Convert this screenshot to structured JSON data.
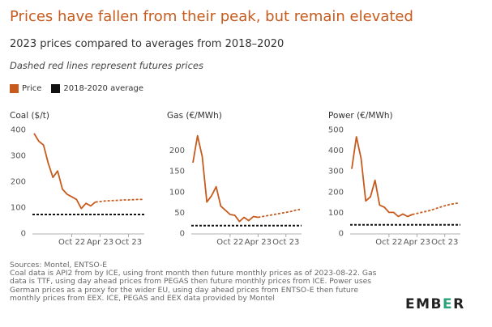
{
  "title": "Prices have fallen from their peak, but remain elevated",
  "subtitle": "2023 prices compared to averages from 2018–2020",
  "note": "Dashed red lines represent futures prices",
  "legend": {
    "price_label": "Price",
    "average_label": "2018-2020 average",
    "price_color": "#c75b1d",
    "average_color": "#111111"
  },
  "colors": {
    "line": "#c75b1d",
    "avg": "#111111",
    "axis": "#999999",
    "tick_text": "#555555"
  },
  "chart_data": [
    {
      "type": "line",
      "title": "Coal ($/t)",
      "x_ticks": [
        "Oct 22",
        "Apr 23",
        "Oct 23"
      ],
      "x_tick_positions": [
        9,
        15,
        21
      ],
      "y_ticks": [
        0,
        100,
        200,
        300,
        400
      ],
      "ylim": [
        0,
        400
      ],
      "x": [
        1,
        2,
        3,
        4,
        5,
        6,
        7,
        8,
        9,
        10,
        11,
        12,
        13,
        14,
        15,
        16,
        17,
        18,
        19,
        20,
        21,
        22,
        23,
        24
      ],
      "series": [
        {
          "values": [
            385,
            355,
            340,
            270,
            215,
            240,
            170,
            150,
            140,
            130,
            95,
            115,
            105,
            120,
            null,
            null,
            null,
            null,
            null,
            null,
            null,
            null,
            null,
            null
          ]
        },
        {
          "values": [
            null,
            null,
            null,
            null,
            null,
            null,
            null,
            null,
            null,
            null,
            null,
            null,
            null,
            120,
            122,
            124,
            125,
            126,
            127,
            128,
            128,
            129,
            130,
            130
          ]
        }
      ],
      "average": 72
    },
    {
      "type": "line",
      "title": "Gas (€/MWh)",
      "x_ticks": [
        "Oct 22",
        "Apr 23",
        "Oct 23"
      ],
      "x_tick_positions": [
        9,
        15,
        21
      ],
      "y_ticks": [
        0,
        50,
        100,
        150,
        200
      ],
      "ylim": [
        0,
        250
      ],
      "x": [
        1,
        2,
        3,
        4,
        5,
        6,
        7,
        8,
        9,
        10,
        11,
        12,
        13,
        14,
        15,
        16,
        17,
        18,
        19,
        20,
        21,
        22,
        23,
        24
      ],
      "series": [
        {
          "values": [
            170,
            235,
            185,
            75,
            90,
            112,
            65,
            55,
            45,
            43,
            28,
            38,
            30,
            40,
            38,
            null,
            null,
            null,
            null,
            null,
            null,
            null,
            null,
            null
          ]
        },
        {
          "values": [
            null,
            null,
            null,
            null,
            null,
            null,
            null,
            null,
            null,
            null,
            null,
            null,
            null,
            null,
            38,
            40,
            42,
            44,
            46,
            48,
            50,
            52,
            55,
            57
          ]
        }
      ],
      "average": 18
    },
    {
      "type": "line",
      "title": "Power (€/MWh)",
      "x_ticks": [
        "Oct 22",
        "Apr 23",
        "Oct 23"
      ],
      "x_tick_positions": [
        9,
        15,
        21
      ],
      "y_ticks": [
        0,
        100,
        200,
        300,
        400,
        500
      ],
      "ylim": [
        0,
        500
      ],
      "x": [
        1,
        2,
        3,
        4,
        5,
        6,
        7,
        8,
        9,
        10,
        11,
        12,
        13,
        14,
        15,
        16,
        17,
        18,
        19,
        20,
        21,
        22,
        23,
        24
      ],
      "series": [
        {
          "values": [
            310,
            465,
            360,
            155,
            175,
            255,
            135,
            125,
            100,
            100,
            80,
            92,
            80,
            90,
            null,
            null,
            null,
            null,
            null,
            null,
            null,
            null,
            null,
            null
          ]
        },
        {
          "values": [
            null,
            null,
            null,
            null,
            null,
            null,
            null,
            null,
            null,
            null,
            null,
            null,
            null,
            90,
            95,
            100,
            105,
            110,
            118,
            125,
            132,
            138,
            142,
            145
          ]
        }
      ],
      "average": 40
    }
  ],
  "sources": {
    "line1": "Sources: Montel, ENTSO-E",
    "line2": "Coal data is API2 from by ICE, using front month then future monthly prices as of 2023-08-22. Gas data is TTF, using day ahead prices from PEGAS then future monthly prices from ICE. Power uses German prices as a proxy for the wider EU, using day ahead prices from ENTSO-E then future monthly prices from EEX. ICE, PEGAS and EEX data provided by Montel"
  },
  "logo": {
    "left": "EMB",
    "mid": "E",
    "right": "R"
  }
}
